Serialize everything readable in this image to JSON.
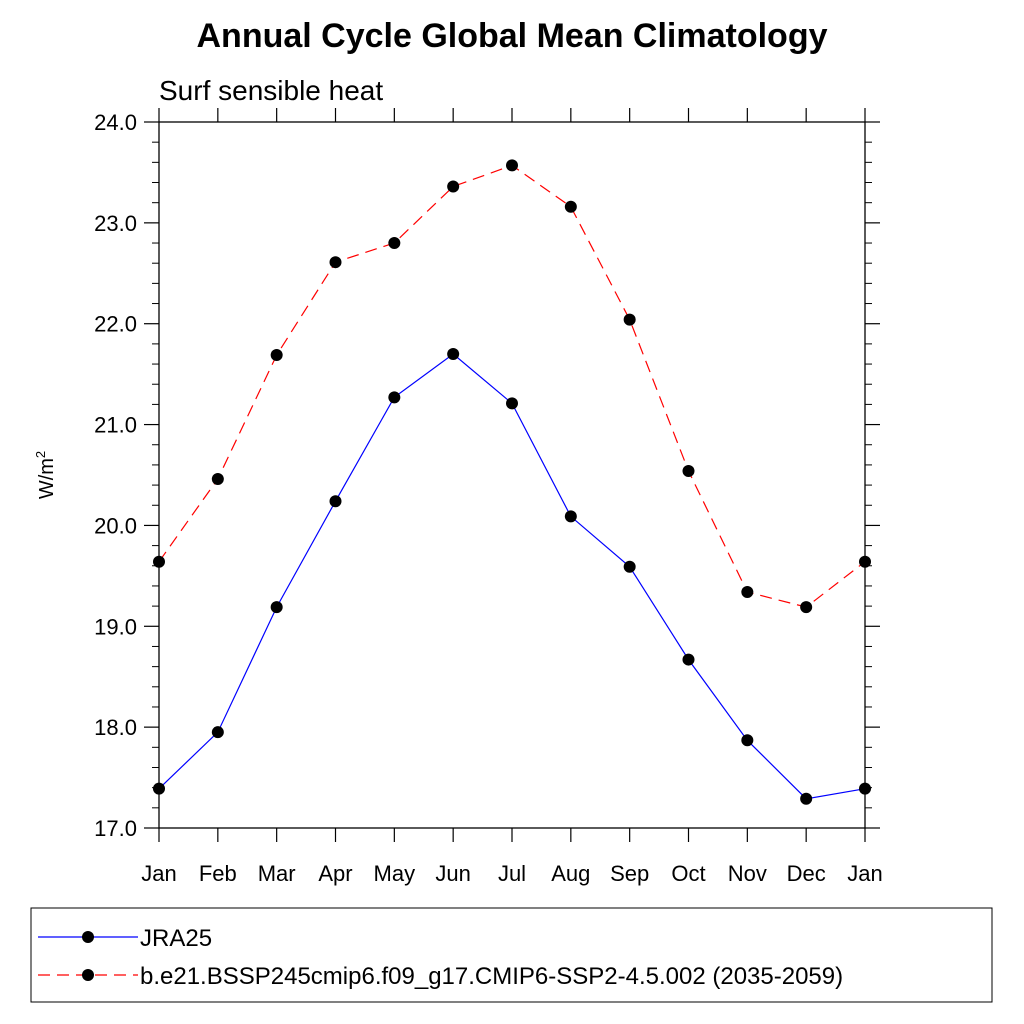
{
  "chart_data": {
    "type": "line",
    "title": "Annual Cycle Global Mean Climatology",
    "subtitle": "Surf sensible heat",
    "ylabel": "W/m",
    "ylabel_sup": "2",
    "xlabel": "",
    "categories": [
      "Jan",
      "Feb",
      "Mar",
      "Apr",
      "May",
      "Jun",
      "Jul",
      "Aug",
      "Sep",
      "Oct",
      "Nov",
      "Dec",
      "Jan"
    ],
    "ylim": [
      17.0,
      24.0
    ],
    "yticks": [
      "17.0",
      "18.0",
      "19.0",
      "20.0",
      "21.0",
      "22.0",
      "23.0",
      "24.0"
    ],
    "grid": false,
    "legend_position": "bottom",
    "series": [
      {
        "name": "JRA25",
        "color": "#0000ff",
        "dash": "solid",
        "values": [
          17.39,
          17.95,
          19.19,
          20.24,
          21.27,
          21.7,
          21.21,
          20.09,
          19.59,
          18.67,
          17.87,
          17.29,
          17.39
        ]
      },
      {
        "name": "b.e21.BSSP245cmip6.f09_g17.CMIP6-SSP2-4.5.002 (2035-2059)",
        "color": "#ff0000",
        "dash": "dashed",
        "values": [
          19.64,
          20.46,
          21.69,
          22.61,
          22.8,
          23.36,
          23.57,
          23.16,
          22.04,
          20.54,
          19.34,
          19.19,
          19.64
        ]
      }
    ]
  }
}
